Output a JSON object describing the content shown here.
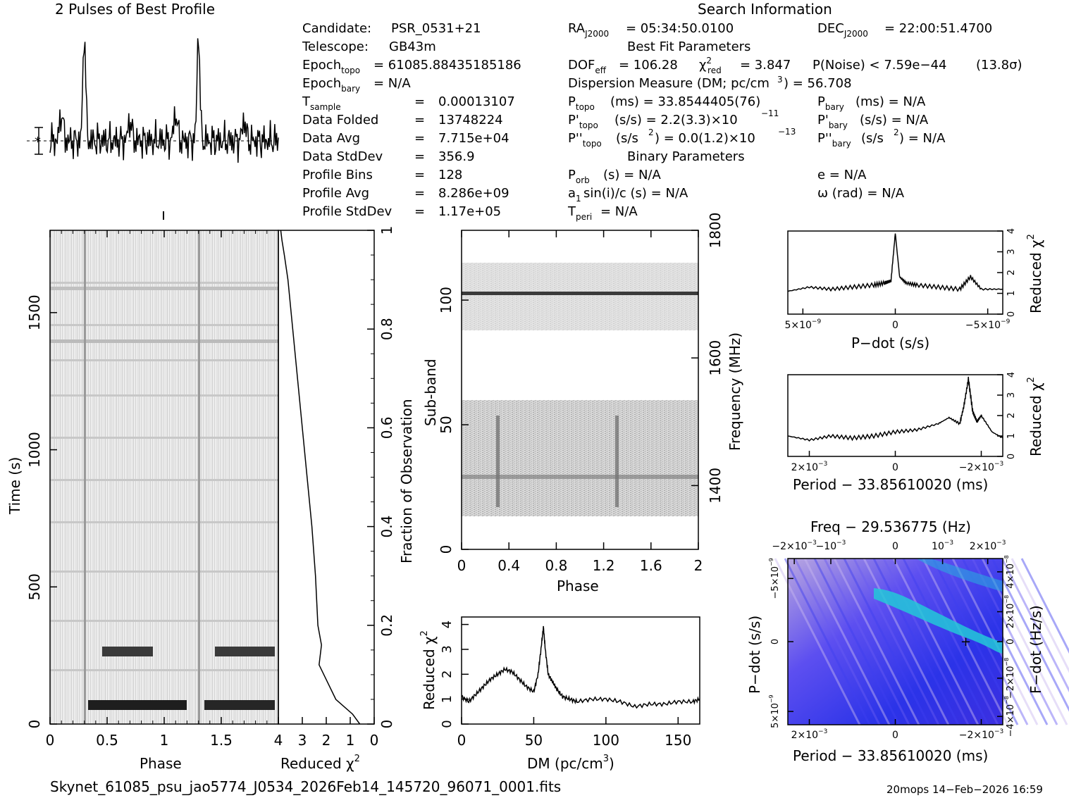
{
  "header": {
    "profile_title": "2 Pulses of Best Profile",
    "search_title": "Search Information",
    "best_fit_title": "Best Fit Parameters",
    "binary_title": "Binary Parameters"
  },
  "info_left": [
    {
      "label": "Candidate:",
      "value": "PSR_0531+21"
    },
    {
      "label": "Telescope:",
      "value": "GB43m"
    },
    {
      "label": "Epoch_topo",
      "value": "= 61085.88435185186"
    },
    {
      "label": "Epoch_bary",
      "value": "= N/A"
    },
    {
      "label": "T_sample",
      "value": "0.00013107"
    },
    {
      "label": "Data Folded",
      "value": "13748224"
    },
    {
      "label": "Data Avg",
      "value": "7.715e+04"
    },
    {
      "label": "Data StdDev",
      "value": "356.9"
    },
    {
      "label": "Profile Bins",
      "value": "128"
    },
    {
      "label": "Profile Avg",
      "value": "8.286e+09"
    },
    {
      "label": "Profile StdDev",
      "value": "1.17e+05"
    }
  ],
  "search_info": {
    "ra": "= 05:34:50.0100",
    "dec": "= 22:00:51.4700",
    "dof": "= 106.28",
    "chi2": "= 3.847",
    "p_noise": "P(Noise) < 7.59e−44",
    "sigma": "(13.8σ)",
    "dm": "Dispersion Measure (DM; pc/cm",
    "dm_value": ") = 56.708",
    "p_topo": "(ms) =  33.8544405(76)",
    "p_bary": "(ms) = N/A",
    "pd_topo": "(s/s) =  2.2(3.3)×10",
    "pd_topo_exp": "−11",
    "pd_bary": "(s/s) = N/A",
    "pdd_topo": "(s/s",
    "pdd_topo_val": ") = 0.0(1.2)×10",
    "pdd_topo_exp": "−13",
    "pdd_bary": ") = N/A",
    "p_orb": "(s) = N/A",
    "a1": "sin(i)/c (s) = N/A",
    "t_peri": "= N/A",
    "ecc": "e = N/A",
    "omega": "ω (rad) = N/A"
  },
  "chart_data": [
    {
      "type": "line",
      "name": "pulse-profile",
      "title": "2 Pulses of Best Profile",
      "x_range": [
        0,
        2
      ],
      "peaks_at_phase": [
        0.3,
        1.3
      ],
      "annotation": "error bar with asterisk at baseline"
    },
    {
      "type": "heatmap",
      "name": "time-phase",
      "xlabel": "Phase",
      "ylabel": "Time (s)",
      "x_ticks": [
        "0",
        "0.5",
        "1",
        "1.5"
      ],
      "y_ticks": [
        "0",
        "500",
        "1000",
        "1500"
      ],
      "xlim": [
        0,
        2
      ],
      "ylim": [
        0,
        1800
      ]
    },
    {
      "type": "line",
      "name": "reduced-chi2-vs-time",
      "xlabel": "Reduced χ",
      "x_ticks": [
        "4",
        "3",
        "2",
        "1",
        "0"
      ],
      "right_label": "Fraction of Observation",
      "right_ticks": [
        "0",
        "0.2",
        "0.4",
        "0.6",
        "0.8",
        "1"
      ],
      "fraction": [
        0.0,
        0.02,
        0.05,
        0.08,
        0.12,
        0.16,
        0.2,
        0.3,
        0.4,
        0.5,
        0.6,
        0.7,
        0.8,
        0.9,
        0.95,
        0.98,
        1.0
      ],
      "chi2": [
        0.6,
        0.9,
        1.6,
        1.9,
        2.3,
        2.2,
        2.35,
        2.45,
        2.6,
        2.8,
        3.0,
        3.2,
        3.4,
        3.6,
        3.75,
        3.85,
        3.9
      ]
    },
    {
      "type": "heatmap",
      "name": "subband-phase",
      "xlabel": "Phase",
      "ylabel": "Sub-band",
      "right_label": "Frequency (MHz)",
      "x_ticks": [
        "0",
        "0.4",
        "0.8",
        "1.2",
        "1.6",
        "2"
      ],
      "y_ticks": [
        "0",
        "50",
        "100"
      ],
      "right_ticks": [
        "1400",
        "1600",
        "1800"
      ],
      "xlim": [
        0,
        2
      ],
      "ylim": [
        0,
        128
      ]
    },
    {
      "type": "line",
      "name": "dm-curve",
      "xlabel": "DM (pc/cm",
      "ylabel": "Reduced χ",
      "x_ticks": [
        "0",
        "50",
        "100",
        "150"
      ],
      "y_ticks": [
        "0",
        "1",
        "2",
        "3",
        "4"
      ],
      "xlim": [
        0,
        165
      ],
      "ylim": [
        0,
        4.3
      ],
      "x": [
        0,
        5,
        10,
        15,
        20,
        25,
        30,
        35,
        40,
        45,
        50,
        53,
        55,
        56.7,
        58,
        60,
        63,
        66,
        70,
        75,
        80,
        90,
        100,
        110,
        120,
        130,
        140,
        150,
        160,
        165
      ],
      "y": [
        1.1,
        0.9,
        1.2,
        1.5,
        1.8,
        2.0,
        2.2,
        2.1,
        1.8,
        1.5,
        1.3,
        2.0,
        3.0,
        3.9,
        3.0,
        2.0,
        1.7,
        1.4,
        1.1,
        1.0,
        0.9,
        1.0,
        1.0,
        0.9,
        0.7,
        0.8,
        0.8,
        0.9,
        0.9,
        1.0
      ]
    },
    {
      "type": "line",
      "name": "pdot-curve",
      "xlabel": "P−dot (s/s)",
      "ylabel": "Reduced χ",
      "x_ticks": [
        "5×10",
        "0",
        "−5×10"
      ],
      "y_ticks": [
        "0",
        "1",
        "2",
        "3",
        "4"
      ],
      "ylim": [
        0,
        4
      ],
      "x": [
        0,
        0.1,
        0.2,
        0.3,
        0.4,
        0.45,
        0.48,
        0.5,
        0.52,
        0.55,
        0.6,
        0.7,
        0.8,
        0.85,
        0.9,
        1.0
      ],
      "y": [
        1.1,
        1.3,
        1.2,
        1.3,
        1.4,
        1.5,
        1.6,
        3.9,
        1.8,
        1.5,
        1.4,
        1.3,
        1.2,
        1.8,
        1.2,
        1.2
      ]
    },
    {
      "type": "line",
      "name": "period-curve",
      "xlabel": "Period − 33.85610020 (ms)",
      "ylabel": "Reduced χ",
      "x_ticks": [
        "2×10",
        "0",
        "−2×10"
      ],
      "y_ticks": [
        "0",
        "1",
        "2",
        "3",
        "4"
      ],
      "ylim": [
        0,
        4
      ],
      "x": [
        0,
        0.1,
        0.2,
        0.3,
        0.4,
        0.5,
        0.6,
        0.7,
        0.75,
        0.8,
        0.82,
        0.84,
        0.86,
        0.88,
        0.9,
        0.95,
        1.0
      ],
      "y": [
        1.0,
        0.8,
        1.0,
        0.9,
        1.0,
        1.2,
        1.3,
        1.6,
        1.9,
        1.6,
        2.5,
        3.8,
        2.2,
        1.7,
        2.0,
        1.2,
        0.9
      ]
    },
    {
      "type": "heatmap",
      "name": "period-pdot-grid",
      "title": "Freq − 29.536775 (Hz)",
      "xlabel": "Period − 33.85610020 (ms)",
      "ylabel": "P−dot (s/s)",
      "right_label": "F−dot (Hz/s)",
      "top_ticks": [
        "−2×10",
        "−10",
        "0",
        "10",
        "2×10"
      ],
      "bottom_ticks": [
        "2×10",
        "0",
        "−2×10"
      ],
      "left_ticks": [
        "−5×10",
        "0",
        "5×10"
      ],
      "right_ticks": [
        "4×10",
        "2×10",
        "0",
        "−2×10",
        "−4×10"
      ],
      "best_fit": {
        "period_offset": -0.0017,
        "pdot": 0
      }
    }
  ],
  "footer": {
    "filename": "Skynet_61085_psu_jao5774_J0534_2026Feb14_145720_96071_0001.fits",
    "stamp": "20mops 14−Feb−2026 16:59"
  }
}
